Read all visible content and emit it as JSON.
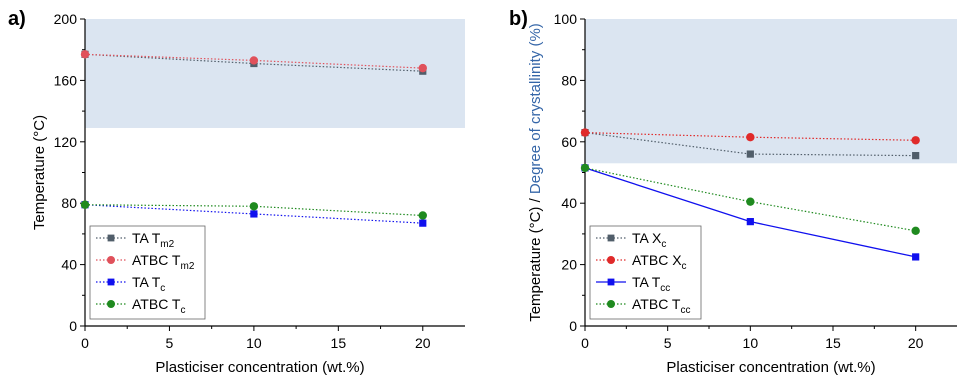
{
  "chart_data": [
    {
      "type": "line",
      "panel_label": "a)",
      "xlabel": "Plasticiser concentration (wt.%)",
      "ylabel": "Temperature (°C)",
      "ylabel_parts": [
        {
          "text": "Temperature (°C)",
          "color": "#000000"
        }
      ],
      "xlim": [
        0,
        22.5
      ],
      "ylim": [
        0,
        200
      ],
      "xticks": [
        0,
        5,
        10,
        15,
        20
      ],
      "yticks": [
        0,
        40,
        80,
        120,
        160,
        200
      ],
      "xtick_labels": [
        "0",
        "5",
        "10",
        "15",
        "20"
      ],
      "ytick_labels": [
        "0",
        "40",
        "80",
        "120",
        "160",
        "200"
      ],
      "shaded_region": {
        "y_from": 129,
        "y_to": 200,
        "color": "#dbe5f1"
      },
      "legend_position": "bottom-left",
      "series": [
        {
          "name": "TA T",
          "sub": "m2",
          "color": "#515e6a",
          "marker": "square",
          "x": [
            0,
            10,
            20
          ],
          "y": [
            177,
            171,
            166
          ]
        },
        {
          "name": "ATBC T",
          "sub": "m2",
          "color": "#e0515b",
          "marker": "circle",
          "x": [
            0,
            10,
            20
          ],
          "y": [
            177,
            173,
            168
          ]
        },
        {
          "name": "TA T",
          "sub": "c",
          "color": "#1010ee",
          "marker": "square",
          "x": [
            0,
            10,
            20
          ],
          "y": [
            79,
            73,
            67
          ]
        },
        {
          "name": "ATBC T",
          "sub": "c",
          "color": "#1f8a1f",
          "marker": "circle",
          "x": [
            0,
            10,
            20
          ],
          "y": [
            79,
            78,
            72
          ]
        }
      ]
    },
    {
      "type": "line",
      "panel_label": "b)",
      "xlabel": "Plasticiser concentration (wt.%)",
      "ylabel": "Temperature (°C) / Degree of crystallinity (%)",
      "ylabel_parts": [
        {
          "text": "Temperature (°C) / ",
          "color": "#000000"
        },
        {
          "text": "Degree of crystallinity (%)",
          "color": "#3566a8"
        }
      ],
      "xlim": [
        0,
        22.5
      ],
      "ylim": [
        0,
        100
      ],
      "xticks": [
        0,
        5,
        10,
        15,
        20
      ],
      "yticks": [
        0,
        20,
        40,
        60,
        80,
        100
      ],
      "xtick_labels": [
        "0",
        "5",
        "10",
        "15",
        "20"
      ],
      "ytick_labels": [
        "0",
        "20",
        "40",
        "60",
        "80",
        "100"
      ],
      "shaded_region": {
        "y_from": 53,
        "y_to": 100,
        "color": "#dbe5f1"
      },
      "legend_position": "bottom-left",
      "series": [
        {
          "name": "TA X",
          "sub": "c",
          "color": "#515e6a",
          "marker": "square",
          "x": [
            0,
            10,
            20
          ],
          "y": [
            63,
            56,
            55.5
          ]
        },
        {
          "name": "ATBC X",
          "sub": "c",
          "color": "#e02a2a",
          "marker": "circle",
          "x": [
            0,
            10,
            20
          ],
          "y": [
            63,
            61.5,
            60.5
          ]
        },
        {
          "name": "TA T",
          "sub": "cc",
          "color": "#1010ee",
          "marker": "square",
          "x": [
            0,
            10,
            20
          ],
          "y": [
            51.5,
            34,
            22.5
          ]
        },
        {
          "name": "ATBC T",
          "sub": "cc",
          "color": "#1f8a1f",
          "marker": "circle",
          "x": [
            0,
            10,
            20
          ],
          "y": [
            51.5,
            40.5,
            31
          ]
        }
      ]
    }
  ]
}
